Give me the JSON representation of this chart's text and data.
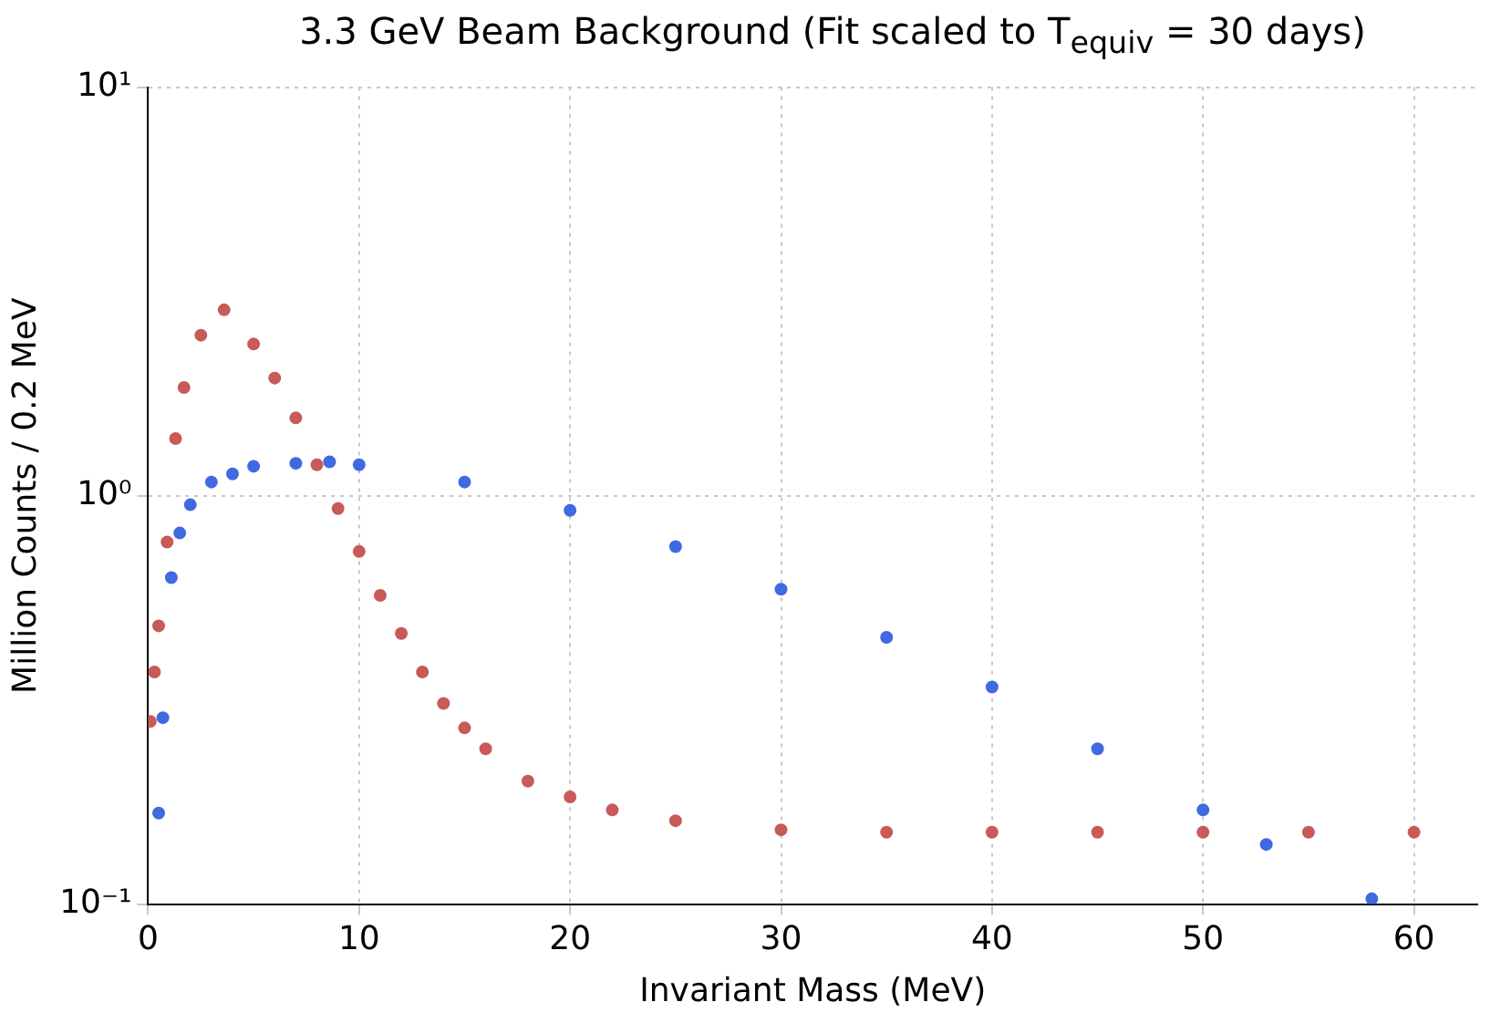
{
  "chart_data": {
    "type": "scatter",
    "title": "3.3 GeV Beam Background (Fit scaled to T$_{equiv}$ = 30 days)",
    "xlabel": "Invariant Mass (MeV)",
    "ylabel": "Million Counts / 0.2 MeV",
    "log": "y",
    "grid": true,
    "marker": "circle",
    "legend": false,
    "xlim": [
      0,
      63
    ],
    "xticks": [
      0,
      10,
      20,
      30,
      40,
      50,
      60
    ],
    "ylim": [
      0.1,
      10
    ],
    "yticks": [
      {
        "value": 0.1,
        "label": "10⁻¹"
      },
      {
        "value": 1,
        "label": "10⁰"
      },
      {
        "value": 10,
        "label": "10¹"
      }
    ],
    "series": [
      {
        "color": "#c85a5a",
        "x": [
          0.1,
          0.3,
          0.5,
          0.9,
          1.3,
          1.7,
          2.5,
          3.6,
          5,
          6,
          7,
          8,
          9,
          10,
          11,
          12,
          13,
          14,
          15,
          16,
          18,
          20,
          22,
          25,
          30,
          35,
          40,
          45,
          50,
          55,
          60
        ],
        "values": [
          0.28,
          0.37,
          0.48,
          0.77,
          1.38,
          1.84,
          2.47,
          2.85,
          2.35,
          1.94,
          1.55,
          1.19,
          0.93,
          0.73,
          0.57,
          0.46,
          0.37,
          0.31,
          0.27,
          0.24,
          0.2,
          0.183,
          0.17,
          0.16,
          0.152,
          0.15,
          0.15,
          0.15,
          0.15,
          0.15,
          0.15
        ]
      },
      {
        "color": "#4169e1",
        "x": [
          0.5,
          0.7,
          1.1,
          1.5,
          2,
          3,
          4,
          5,
          7,
          8.6,
          10,
          15,
          20,
          25,
          30,
          35,
          40,
          45,
          50,
          53,
          58
        ],
        "values": [
          0.167,
          0.286,
          0.63,
          0.81,
          0.95,
          1.08,
          1.13,
          1.18,
          1.2,
          1.21,
          1.19,
          1.08,
          0.92,
          0.75,
          0.59,
          0.45,
          0.34,
          0.24,
          0.17,
          0.14,
          0.103
        ]
      }
    ]
  }
}
